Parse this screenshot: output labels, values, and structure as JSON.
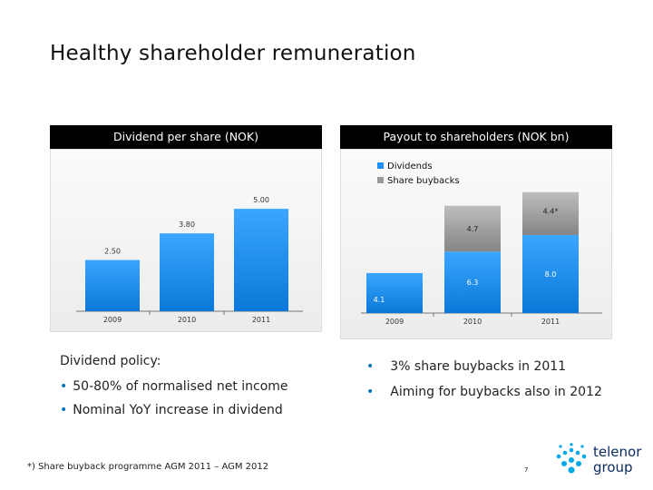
{
  "title": "Healthy shareholder remuneration",
  "chart_data": [
    {
      "type": "bar",
      "title": "Dividend per share (NOK)",
      "categories": [
        "2009",
        "2010",
        "2011"
      ],
      "values": [
        2.5,
        3.8,
        5.0
      ],
      "value_labels": [
        "2.50",
        "3.80",
        "5.00"
      ],
      "ylim": [
        0,
        6.2
      ],
      "grid": false,
      "colors": [
        "#1e90ff"
      ]
    },
    {
      "type": "bar",
      "stacked": true,
      "title": "Payout to shareholders (NOK bn)",
      "categories": [
        "2009",
        "2010",
        "2011"
      ],
      "legend_position": "top-left",
      "series": [
        {
          "name": "Dividends",
          "values": [
            4.1,
            6.3,
            8.0
          ],
          "labels": [
            "4.1",
            "6.3",
            "8.0"
          ],
          "color": "#1e90ff"
        },
        {
          "name": "Share buybacks",
          "values": [
            0,
            4.7,
            4.4
          ],
          "labels": [
            "",
            "4.7",
            "4.4*"
          ],
          "color": "#9a9a9a"
        }
      ],
      "ylim": [
        0,
        16
      ],
      "grid": false
    }
  ],
  "policy": {
    "heading": "Dividend policy:",
    "bullets": [
      "50-80% of normalised net income",
      "Nominal YoY increase in dividend"
    ]
  },
  "right_bullets": [
    "3% share buybacks in 2011",
    "Aiming for buybacks also in 2012"
  ],
  "footnote": "*) Share buyback programme AGM 2011 – AGM 2012",
  "page_number": "7",
  "logo": {
    "line1": "telenor",
    "line2": "group",
    "color": "#0a2a5e",
    "accent": "#00a8e8"
  }
}
